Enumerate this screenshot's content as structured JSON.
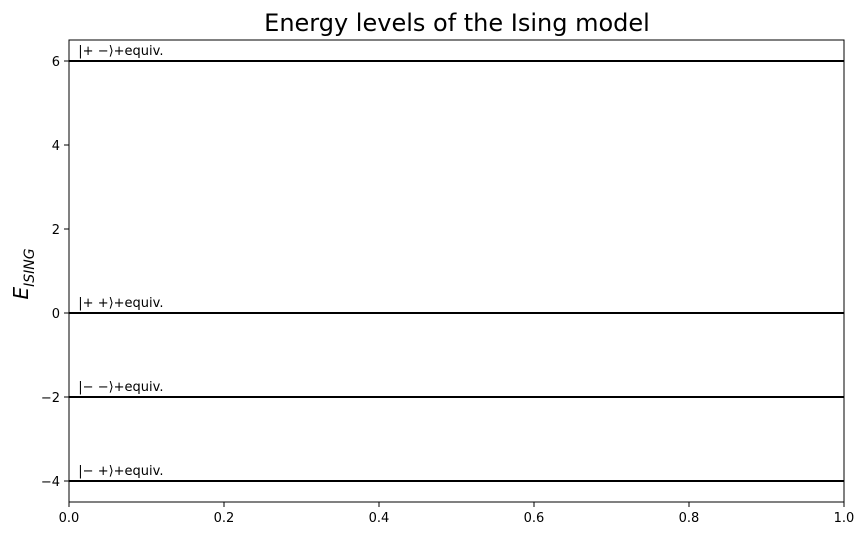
{
  "chart_data": {
    "type": "line",
    "title": "Energy levels of the Ising model",
    "xlabel": "",
    "ylabel": "E",
    "ylabel_subscript": "ISING",
    "xlim": [
      0,
      1
    ],
    "ylim": [
      -4.5,
      6.5
    ],
    "xticks": [
      "0.0",
      "0.2",
      "0.4",
      "0.6",
      "0.8",
      "1.0"
    ],
    "xtick_values": [
      0,
      0.2,
      0.4,
      0.6,
      0.8,
      1.0
    ],
    "yticks": [
      "−4",
      "−2",
      "0",
      "2",
      "4",
      "6"
    ],
    "ytick_values": [
      -4,
      -2,
      0,
      2,
      4,
      6
    ],
    "grid": false,
    "line_color": "#000000",
    "levels": [
      {
        "energy": 6,
        "label": "|+ −⟩+equiv."
      },
      {
        "energy": 0,
        "label": "|+ +⟩+equiv."
      },
      {
        "energy": -2,
        "label": "|− −⟩+equiv."
      },
      {
        "energy": -4,
        "label": "|− +⟩+equiv."
      }
    ]
  }
}
